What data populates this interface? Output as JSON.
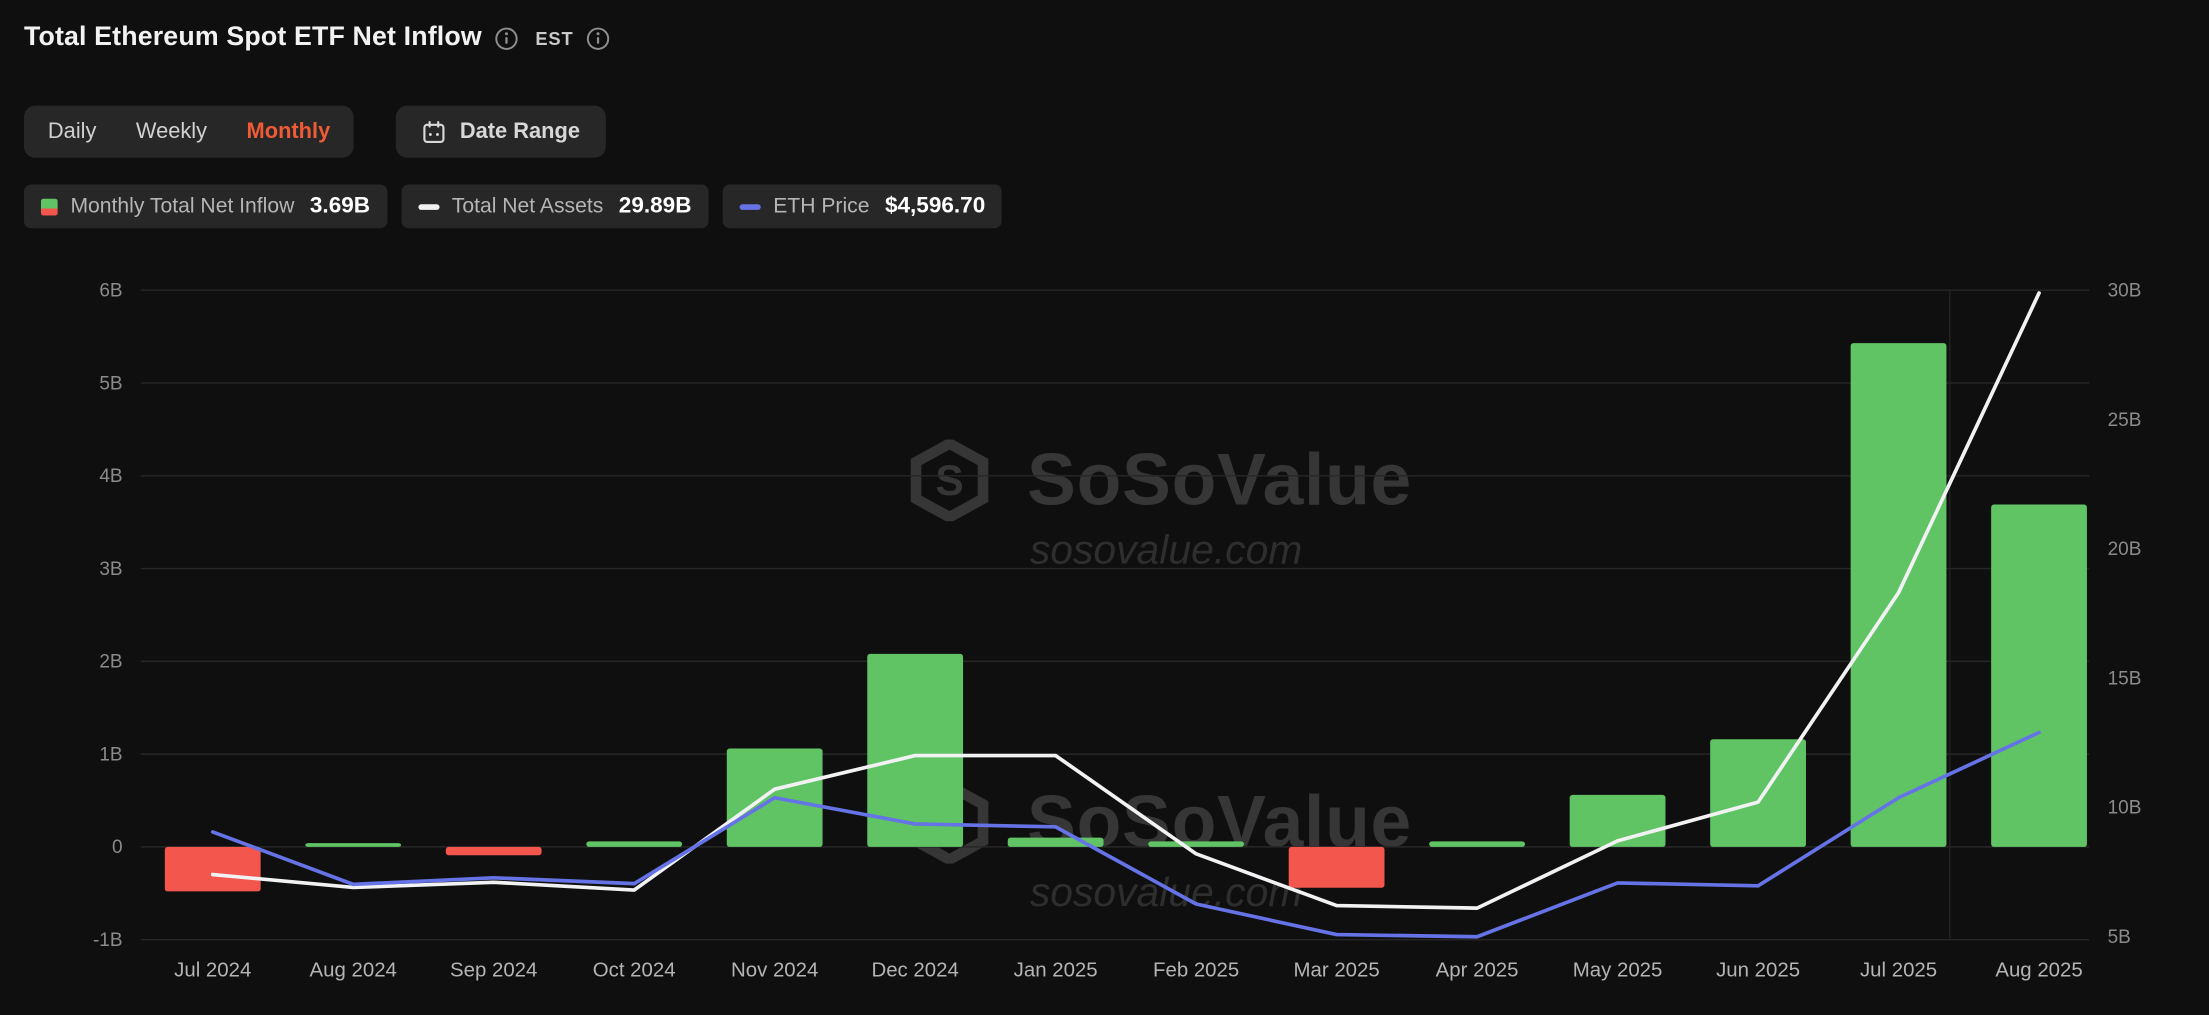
{
  "colors": {
    "background": "#0f0f0f",
    "panel": "#272727",
    "accent_orange": "#ee5b35",
    "bar_positive": "#60c465",
    "bar_negative": "#f2564c",
    "net_assets_line": "#f2f2f4",
    "eth_price_line": "#6573e6",
    "grid": "#272727",
    "axis_text": "#8b8b8b",
    "xaxis_text": "#b4b4b4"
  },
  "header": {
    "title": "Total Ethereum Spot ETF Net Inflow",
    "timezone": "EST"
  },
  "tabs": {
    "items": [
      {
        "label": "Daily",
        "active": false
      },
      {
        "label": "Weekly",
        "active": false
      },
      {
        "label": "Monthly",
        "active": true
      }
    ]
  },
  "date_range": {
    "label": "Date Range"
  },
  "legend": [
    {
      "label": "Monthly Total Net Inflow",
      "value": "3.69B"
    },
    {
      "label": "Total Net Assets",
      "value": "29.89B"
    },
    {
      "label": "ETH Price",
      "value": "$4,596.70"
    }
  ],
  "watermark": {
    "brand": "SoSoValue",
    "domain": "sosovalue.com"
  },
  "chart_data": {
    "type": "bar+line combo",
    "title": "Total Ethereum Spot ETF Net Inflow",
    "categories": [
      "Jul 2024",
      "Aug 2024",
      "Sep 2024",
      "Oct 2024",
      "Nov 2024",
      "Dec 2024",
      "Jan 2025",
      "Feb 2025",
      "Mar 2025",
      "Apr 2025",
      "May 2025",
      "Jun 2025",
      "Jul 2025",
      "Aug 2025"
    ],
    "series": [
      {
        "name": "Monthly Total Net Inflow",
        "type": "bar",
        "axis": "left",
        "unit": "B USD",
        "values": [
          -0.48,
          0.04,
          -0.09,
          0.06,
          1.06,
          2.08,
          0.1,
          0.06,
          -0.44,
          0.06,
          0.56,
          1.16,
          5.43,
          3.69
        ]
      },
      {
        "name": "Total Net Assets",
        "type": "line",
        "axis": "right",
        "unit": "B USD",
        "values": [
          7.4,
          6.9,
          7.1,
          6.8,
          10.7,
          12.0,
          12.0,
          8.2,
          6.2,
          6.1,
          8.7,
          10.2,
          18.3,
          29.89
        ]
      },
      {
        "name": "ETH Price",
        "type": "line",
        "axis": "hidden-price",
        "unit": "USD",
        "values": [
          3230,
          2510,
          2600,
          2520,
          3700,
          3340,
          3300,
          2240,
          1820,
          1790,
          2530,
          2490,
          3700,
          4596.7
        ]
      }
    ],
    "left_axis": {
      "min": -1,
      "max": 6,
      "ticks": [
        {
          "label": "6B",
          "value": 6
        },
        {
          "label": "5B",
          "value": 5
        },
        {
          "label": "4B",
          "value": 4
        },
        {
          "label": "3B",
          "value": 3
        },
        {
          "label": "2B",
          "value": 2
        },
        {
          "label": "1B",
          "value": 1
        },
        {
          "label": "0",
          "value": 0
        },
        {
          "label": "-1B",
          "value": -1
        }
      ]
    },
    "right_axis": {
      "min": 4.88,
      "max": 30,
      "ticks": [
        {
          "label": "30B",
          "value": 30
        },
        {
          "label": "25B",
          "value": 25
        },
        {
          "label": "20B",
          "value": 20
        },
        {
          "label": "15B",
          "value": 15
        },
        {
          "label": "10B",
          "value": 10
        },
        {
          "label": "5B",
          "value": 5
        }
      ]
    },
    "price_axis": {
      "min": 1750,
      "max": 10673,
      "visible": false
    },
    "grid": true,
    "legend_position": "top"
  }
}
